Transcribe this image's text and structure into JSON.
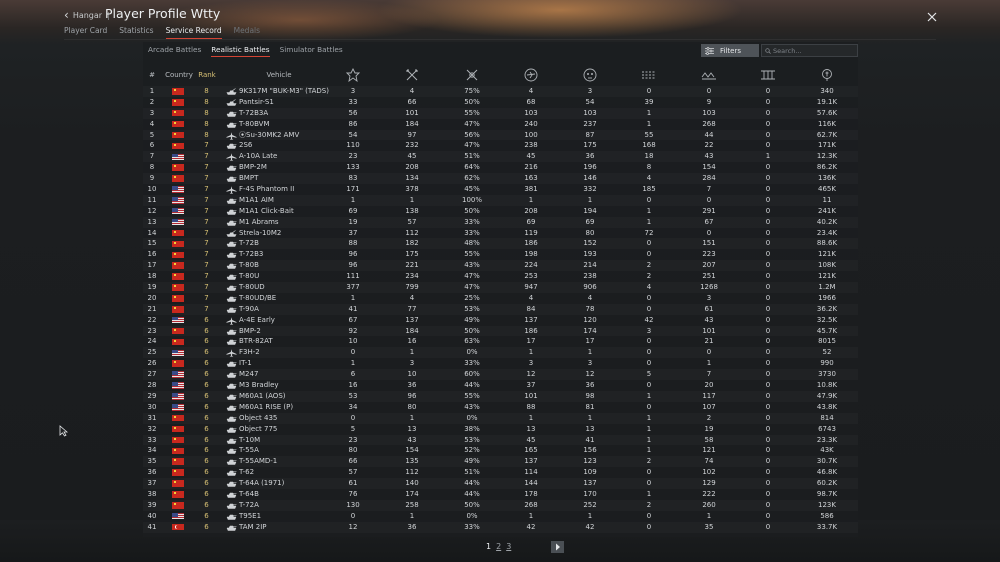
{
  "header": {
    "back_label": "Hangar",
    "separator": "|",
    "title": "Player Profile Wtty",
    "tabs": [
      {
        "label": "Player Card",
        "state": "normal"
      },
      {
        "label": "Statistics",
        "state": "normal"
      },
      {
        "label": "Service Record",
        "state": "active"
      },
      {
        "label": "Medals",
        "state": "dim"
      }
    ]
  },
  "subtabs": [
    {
      "label": "Arcade Battles",
      "active": false
    },
    {
      "label": "Realistic Battles",
      "active": true
    },
    {
      "label": "Simulator Battles",
      "active": false
    }
  ],
  "filters_label": "Filters",
  "search_placeholder": "Search...",
  "columns": {
    "num": "#",
    "country": "Country",
    "rank": "Rank",
    "vehicle": "Vehicle",
    "stat_icons": [
      "battles-icon",
      "respawns-icon",
      "victories-percent-icon",
      "air-kills-icon",
      "ground-kills-icon",
      "naval-kills-icon",
      "victories-icon",
      "defeats-icon",
      "lions-icon"
    ]
  },
  "rows": [
    {
      "n": "1",
      "country": "cn",
      "rank": "8",
      "type": "aa",
      "vehicle": "9K317M \"BUK-M3\" (TADS)",
      "s": [
        "3",
        "4",
        "75%",
        "4",
        "3",
        "0",
        "0",
        "0",
        "340"
      ]
    },
    {
      "n": "2",
      "country": "cn",
      "rank": "8",
      "type": "aa",
      "vehicle": "Pantsir-S1",
      "s": [
        "33",
        "66",
        "50%",
        "68",
        "54",
        "39",
        "9",
        "0",
        "19.1K"
      ]
    },
    {
      "n": "3",
      "country": "cn",
      "rank": "8",
      "type": "tank",
      "vehicle": "T-72B3A",
      "s": [
        "56",
        "101",
        "55%",
        "103",
        "103",
        "1",
        "103",
        "0",
        "57.6K"
      ]
    },
    {
      "n": "4",
      "country": "cn",
      "rank": "8",
      "type": "tank",
      "vehicle": "T-80BVM",
      "s": [
        "86",
        "184",
        "47%",
        "240",
        "237",
        "1",
        "268",
        "0",
        "116K"
      ]
    },
    {
      "n": "5",
      "country": "cn",
      "rank": "8",
      "type": "jet",
      "vehicle": "⦿Su-30MK2 AMV",
      "s": [
        "54",
        "97",
        "56%",
        "100",
        "87",
        "55",
        "44",
        "0",
        "62.7K"
      ]
    },
    {
      "n": "6",
      "country": "cn",
      "rank": "7",
      "type": "tank",
      "vehicle": "2S6",
      "s": [
        "110",
        "232",
        "47%",
        "238",
        "175",
        "168",
        "22",
        "0",
        "171K"
      ]
    },
    {
      "n": "7",
      "country": "us",
      "rank": "7",
      "type": "jet",
      "vehicle": "A-10A Late",
      "s": [
        "23",
        "45",
        "51%",
        "45",
        "36",
        "18",
        "43",
        "1",
        "12.3K"
      ]
    },
    {
      "n": "8",
      "country": "cn",
      "rank": "7",
      "type": "tank",
      "vehicle": "BMP-2M",
      "s": [
        "133",
        "208",
        "64%",
        "216",
        "196",
        "8",
        "154",
        "0",
        "86.2K"
      ]
    },
    {
      "n": "9",
      "country": "cn",
      "rank": "7",
      "type": "tank",
      "vehicle": "BMPT",
      "s": [
        "83",
        "134",
        "62%",
        "163",
        "146",
        "4",
        "284",
        "0",
        "136K"
      ]
    },
    {
      "n": "10",
      "country": "us",
      "rank": "7",
      "type": "jet",
      "vehicle": "F-4S Phantom II",
      "s": [
        "171",
        "378",
        "45%",
        "381",
        "332",
        "185",
        "7",
        "0",
        "465K"
      ]
    },
    {
      "n": "11",
      "country": "us",
      "rank": "7",
      "type": "tank",
      "vehicle": "M1A1 AIM",
      "s": [
        "1",
        "1",
        "100%",
        "1",
        "1",
        "0",
        "0",
        "0",
        "11"
      ]
    },
    {
      "n": "12",
      "country": "us",
      "rank": "7",
      "type": "tank",
      "vehicle": "M1A1 Click-Bait",
      "s": [
        "69",
        "138",
        "50%",
        "208",
        "194",
        "1",
        "291",
        "0",
        "241K"
      ]
    },
    {
      "n": "13",
      "country": "us",
      "rank": "7",
      "type": "tank",
      "vehicle": "M1 Abrams",
      "s": [
        "19",
        "57",
        "33%",
        "69",
        "69",
        "1",
        "67",
        "0",
        "40.2K"
      ]
    },
    {
      "n": "14",
      "country": "cn",
      "rank": "7",
      "type": "aa",
      "vehicle": "Strela-10M2",
      "s": [
        "37",
        "112",
        "33%",
        "119",
        "80",
        "72",
        "0",
        "0",
        "23.4K"
      ]
    },
    {
      "n": "15",
      "country": "cn",
      "rank": "7",
      "type": "tank",
      "vehicle": "T-72B",
      "s": [
        "88",
        "182",
        "48%",
        "186",
        "152",
        "0",
        "151",
        "0",
        "88.6K"
      ]
    },
    {
      "n": "16",
      "country": "cn",
      "rank": "7",
      "type": "tank",
      "vehicle": "T-72B3",
      "s": [
        "96",
        "175",
        "55%",
        "198",
        "193",
        "0",
        "223",
        "0",
        "121K"
      ]
    },
    {
      "n": "17",
      "country": "cn",
      "rank": "7",
      "type": "tank",
      "vehicle": "T-80B",
      "s": [
        "96",
        "221",
        "43%",
        "224",
        "214",
        "2",
        "207",
        "0",
        "108K"
      ]
    },
    {
      "n": "18",
      "country": "cn",
      "rank": "7",
      "type": "tank",
      "vehicle": "T-80U",
      "s": [
        "111",
        "234",
        "47%",
        "253",
        "238",
        "2",
        "251",
        "0",
        "121K"
      ]
    },
    {
      "n": "19",
      "country": "cn",
      "rank": "7",
      "type": "tank",
      "vehicle": "T-80UD",
      "s": [
        "377",
        "799",
        "47%",
        "947",
        "906",
        "4",
        "1268",
        "0",
        "1.2M"
      ]
    },
    {
      "n": "20",
      "country": "cn",
      "rank": "7",
      "type": "tank",
      "vehicle": "T-80UD/BE",
      "s": [
        "1",
        "4",
        "25%",
        "4",
        "4",
        "0",
        "3",
        "0",
        "1966"
      ]
    },
    {
      "n": "21",
      "country": "cn",
      "rank": "7",
      "type": "tank",
      "vehicle": "T-90A",
      "s": [
        "41",
        "77",
        "53%",
        "84",
        "78",
        "0",
        "61",
        "0",
        "36.2K"
      ]
    },
    {
      "n": "22",
      "country": "us",
      "rank": "6",
      "type": "jet",
      "vehicle": "A-4E Early",
      "s": [
        "67",
        "137",
        "49%",
        "137",
        "120",
        "42",
        "43",
        "0",
        "32.5K"
      ]
    },
    {
      "n": "23",
      "country": "cn",
      "rank": "6",
      "type": "tank",
      "vehicle": "BMP-2",
      "s": [
        "92",
        "184",
        "50%",
        "186",
        "174",
        "3",
        "101",
        "0",
        "45.7K"
      ]
    },
    {
      "n": "24",
      "country": "cn",
      "rank": "6",
      "type": "tank",
      "vehicle": "BTR-82AT",
      "s": [
        "10",
        "16",
        "63%",
        "17",
        "17",
        "0",
        "21",
        "0",
        "8015"
      ]
    },
    {
      "n": "25",
      "country": "us",
      "rank": "6",
      "type": "jet",
      "vehicle": "F3H-2",
      "s": [
        "0",
        "1",
        "0%",
        "1",
        "1",
        "0",
        "0",
        "0",
        "52"
      ]
    },
    {
      "n": "26",
      "country": "cn",
      "rank": "6",
      "type": "tank",
      "vehicle": "IT-1",
      "s": [
        "1",
        "3",
        "33%",
        "3",
        "3",
        "0",
        "1",
        "0",
        "990"
      ]
    },
    {
      "n": "27",
      "country": "us",
      "rank": "6",
      "type": "tank",
      "vehicle": "M247",
      "s": [
        "6",
        "10",
        "60%",
        "12",
        "12",
        "5",
        "7",
        "0",
        "3730"
      ]
    },
    {
      "n": "28",
      "country": "us",
      "rank": "6",
      "type": "tank",
      "vehicle": "M3 Bradley",
      "s": [
        "16",
        "36",
        "44%",
        "37",
        "36",
        "0",
        "20",
        "0",
        "10.8K"
      ]
    },
    {
      "n": "29",
      "country": "us",
      "rank": "6",
      "type": "tank",
      "vehicle": "M60A1 (AOS)",
      "s": [
        "53",
        "96",
        "55%",
        "101",
        "98",
        "1",
        "117",
        "0",
        "47.9K"
      ]
    },
    {
      "n": "30",
      "country": "us",
      "rank": "6",
      "type": "tank",
      "vehicle": "M60A1 RISE (P)",
      "s": [
        "34",
        "80",
        "43%",
        "88",
        "81",
        "0",
        "107",
        "0",
        "43.8K"
      ]
    },
    {
      "n": "31",
      "country": "cn",
      "rank": "6",
      "type": "tank",
      "vehicle": "Object 435",
      "s": [
        "0",
        "1",
        "0%",
        "1",
        "1",
        "1",
        "2",
        "0",
        "814"
      ]
    },
    {
      "n": "32",
      "country": "cn",
      "rank": "6",
      "type": "tank",
      "vehicle": "Object 775",
      "s": [
        "5",
        "13",
        "38%",
        "13",
        "13",
        "1",
        "19",
        "0",
        "6743"
      ]
    },
    {
      "n": "33",
      "country": "cn",
      "rank": "6",
      "type": "tank",
      "vehicle": "T-10M",
      "s": [
        "23",
        "43",
        "53%",
        "45",
        "41",
        "1",
        "58",
        "0",
        "23.3K"
      ]
    },
    {
      "n": "34",
      "country": "cn",
      "rank": "6",
      "type": "tank",
      "vehicle": "T-55A",
      "s": [
        "80",
        "154",
        "52%",
        "165",
        "156",
        "1",
        "121",
        "0",
        "43K"
      ]
    },
    {
      "n": "35",
      "country": "cn",
      "rank": "6",
      "type": "tank",
      "vehicle": "T-55AMD-1",
      "s": [
        "66",
        "135",
        "49%",
        "137",
        "123",
        "2",
        "74",
        "0",
        "30.7K"
      ]
    },
    {
      "n": "36",
      "country": "cn",
      "rank": "6",
      "type": "tank",
      "vehicle": "T-62",
      "s": [
        "57",
        "112",
        "51%",
        "114",
        "109",
        "0",
        "102",
        "0",
        "46.8K"
      ]
    },
    {
      "n": "37",
      "country": "cn",
      "rank": "6",
      "type": "tank",
      "vehicle": "T-64A (1971)",
      "s": [
        "61",
        "140",
        "44%",
        "144",
        "137",
        "0",
        "129",
        "0",
        "60.2K"
      ]
    },
    {
      "n": "38",
      "country": "cn",
      "rank": "6",
      "type": "tank",
      "vehicle": "T-64B",
      "s": [
        "76",
        "174",
        "44%",
        "178",
        "170",
        "1",
        "222",
        "0",
        "98.7K"
      ]
    },
    {
      "n": "39",
      "country": "cn",
      "rank": "6",
      "type": "tank",
      "vehicle": "T-72A",
      "s": [
        "130",
        "258",
        "50%",
        "268",
        "252",
        "2",
        "260",
        "0",
        "123K"
      ]
    },
    {
      "n": "40",
      "country": "us",
      "rank": "6",
      "type": "tank",
      "vehicle": "T95E1",
      "s": [
        "0",
        "1",
        "0%",
        "1",
        "1",
        "0",
        "1",
        "0",
        "586"
      ]
    },
    {
      "n": "41",
      "country": "tr",
      "rank": "6",
      "type": "tank",
      "vehicle": "TAM 2IP",
      "s": [
        "12",
        "36",
        "33%",
        "42",
        "42",
        "0",
        "35",
        "0",
        "33.7K"
      ]
    }
  ],
  "pager": {
    "pages": [
      {
        "label": "1",
        "active": true
      },
      {
        "label": "2",
        "active": false
      },
      {
        "label": "3",
        "active": false
      }
    ],
    "next_icon": "chevron-right-icon"
  },
  "colors": {
    "accent_red": "#d44434",
    "rank_gold": "#d7c074",
    "panel": "#1c1e20"
  }
}
